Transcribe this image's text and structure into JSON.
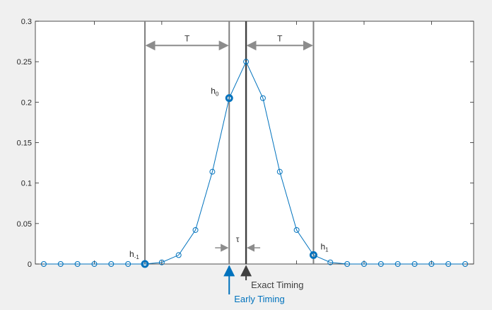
{
  "chart_data": {
    "type": "line",
    "title": "",
    "xlabel": "",
    "ylabel": "",
    "xlim": [
      -7.5,
      18.5
    ],
    "ylim": [
      0,
      0.3
    ],
    "yticks": [
      0,
      0.05,
      0.1,
      0.15,
      0.2,
      0.25,
      0.3
    ],
    "ytick_labels": [
      "0",
      "0.05",
      "0.1",
      "0.15",
      "0.2",
      "0.25",
      "0.3"
    ],
    "xticks": [
      -4,
      0,
      4,
      8,
      12,
      16
    ],
    "grid": false,
    "series": [
      {
        "x": [
          -7,
          -6,
          -5,
          -4,
          -3,
          -2,
          -1,
          0,
          1,
          2,
          3,
          4,
          5,
          6,
          7,
          8,
          9,
          10,
          11,
          12,
          13,
          14,
          15,
          16,
          17,
          18
        ],
        "y": [
          0,
          0,
          0,
          0,
          0,
          0,
          0,
          0.002,
          0.011,
          0.042,
          0.114,
          0.205,
          0.25,
          0.205,
          0.114,
          0.042,
          0.011,
          0.002,
          0,
          0,
          0,
          0,
          0,
          0,
          0,
          0
        ],
        "color": "#0072BD"
      }
    ],
    "highlighted_points": [
      {
        "x": -1,
        "y": 0,
        "label": "h",
        "sub": "-1"
      },
      {
        "x": 4,
        "y": 0.205,
        "label": "h",
        "sub": "0"
      },
      {
        "x": 9,
        "y": 0.011,
        "label": "h",
        "sub": "1"
      }
    ],
    "vertical_lines": [
      {
        "x": -1,
        "color": "#808080"
      },
      {
        "x": 4,
        "color": "#808080"
      },
      {
        "x": 5,
        "color": "#404040"
      },
      {
        "x": 9,
        "color": "#808080"
      }
    ],
    "period_label": "T",
    "offset_label": "τ",
    "annotations": {
      "exact": {
        "text": "Exact Timing",
        "x": 5,
        "color": "#404040"
      },
      "early": {
        "text": "Early Timing",
        "x": 4,
        "color": "#0072BD"
      }
    }
  }
}
